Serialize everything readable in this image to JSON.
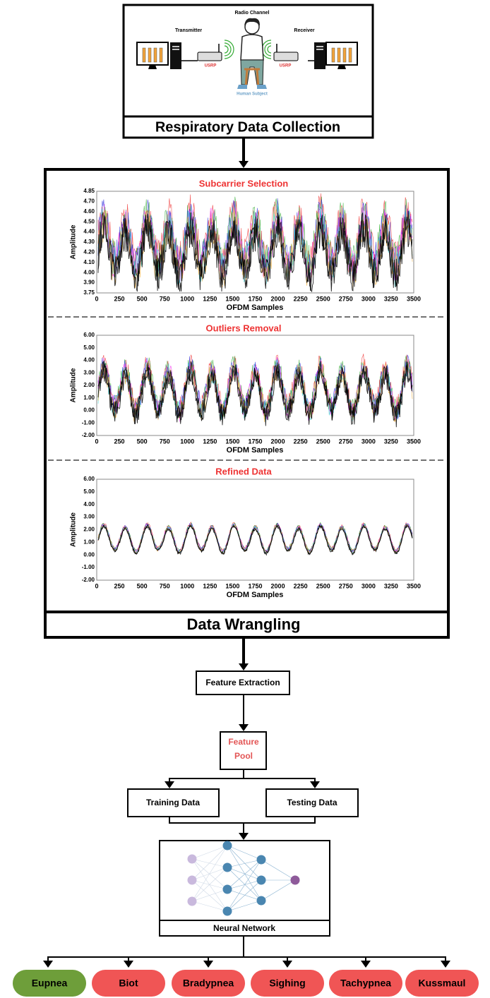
{
  "collection": {
    "radio_channel": "Radio Channel",
    "transmitter": "Transmitter",
    "receiver": "Receiver",
    "usrp_tx": "USRP",
    "usrp_rx": "USRP",
    "subject": "Human Subject",
    "caption": "Respiratory Data Collection"
  },
  "wrangling": {
    "plots": [
      {
        "title": "Subcarrier Selection",
        "y_label": "Amplitude",
        "x_label": "OFDM Samples",
        "yticks": [
          "4.85",
          "4.70",
          "4.60",
          "4.50",
          "4.40",
          "4.30",
          "4.20",
          "4.10",
          "4.00",
          "3.90",
          "3.75"
        ],
        "xticks": [
          "0",
          "250",
          "500",
          "750",
          "1000",
          "1250",
          "1500",
          "1750",
          "2000",
          "2250",
          "2500",
          "2750",
          "3000",
          "3250",
          "3500"
        ]
      },
      {
        "title": "Outliers Removal",
        "y_label": "Amplitude",
        "x_label": "OFDM Samples",
        "yticks": [
          "6.00",
          "5.00",
          "4.00",
          "3.00",
          "2.00",
          "1.00",
          "0.00",
          "-1.00",
          "-2.00"
        ],
        "xticks": [
          "0",
          "250",
          "500",
          "750",
          "1000",
          "1250",
          "1500",
          "1750",
          "2000",
          "2250",
          "2500",
          "2750",
          "3000",
          "3250",
          "3500"
        ]
      },
      {
        "title": "Refined Data",
        "y_label": "Amplitude",
        "x_label": "OFDM Samples",
        "yticks": [
          "6.00",
          "5.00",
          "4.00",
          "3.00",
          "2.00",
          "1.00",
          "0.00",
          "-1.00",
          "-2.00"
        ],
        "xticks": [
          "0",
          "250",
          "500",
          "750",
          "1000",
          "1250",
          "1500",
          "1750",
          "2000",
          "2250",
          "2500",
          "2750",
          "3000",
          "3250",
          "3500"
        ]
      }
    ],
    "caption": "Data Wrangling"
  },
  "feature_extraction": "Feature Extraction",
  "feature_pool": [
    "Feature",
    "Pool"
  ],
  "training_data": "Training Data",
  "testing_data": "Testing Data",
  "neural_network": "Neural Network",
  "classes": [
    "Eupnea",
    "Biot",
    "Bradypnea",
    "Sighing",
    "Tachypnea",
    "Kussmaul"
  ]
}
